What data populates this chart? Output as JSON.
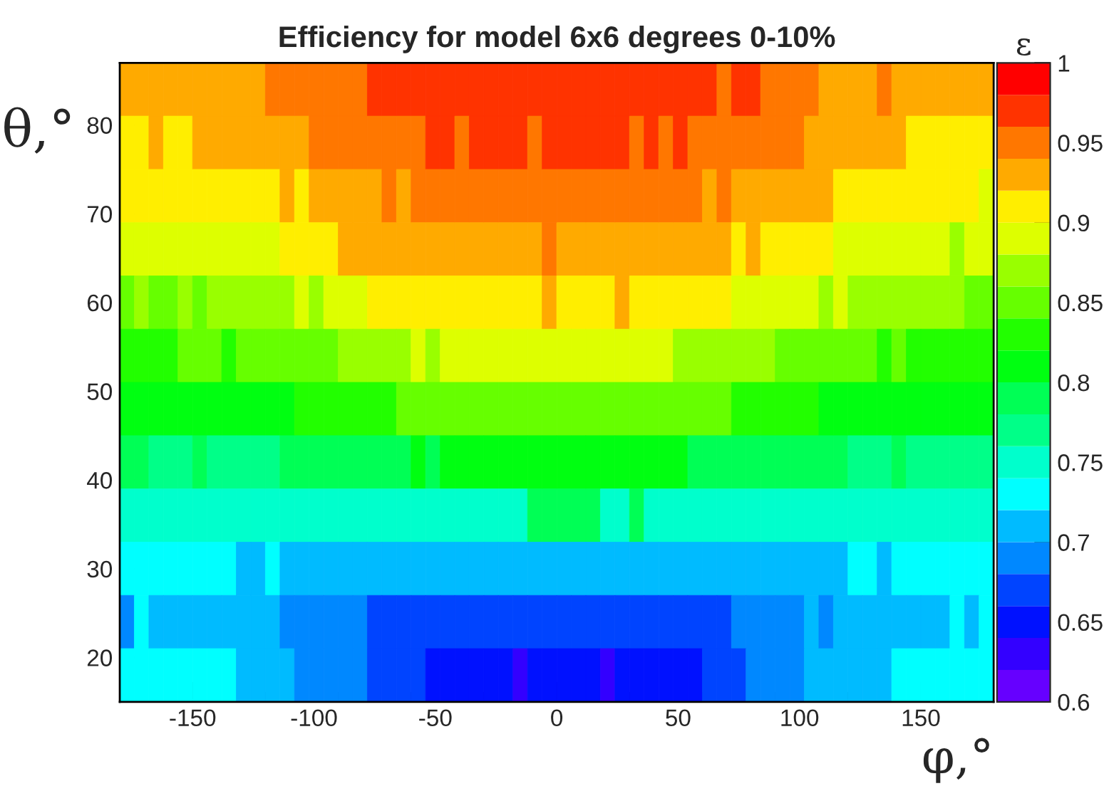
{
  "chart_data": {
    "type": "heatmap",
    "title": "Efficiency for model 6x6 degrees 0-10%",
    "xlabel": "φ,°",
    "ylabel": "θ,°",
    "clabel": "ε",
    "xlim": [
      -180,
      180
    ],
    "xticks": [
      -150,
      -100,
      -50,
      0,
      50,
      100,
      150
    ],
    "ylim": [
      15,
      87
    ],
    "yticks": [
      20,
      30,
      40,
      50,
      60,
      70,
      80
    ],
    "clim": [
      0.6,
      1
    ],
    "cticks": [
      0.6,
      0.65,
      0.7,
      0.75,
      0.8,
      0.85,
      0.9,
      0.95,
      1
    ],
    "colors": [
      "#6600ff",
      "#3300ff",
      "#0011ff",
      "#0044ff",
      "#0088ff",
      "#00bbff",
      "#00ffff",
      "#00ffcc",
      "#00ff88",
      "#00ff55",
      "#00ff11",
      "#22ff00",
      "#66ff00",
      "#99ff00",
      "#ddff00",
      "#ffee00",
      "#ffaa00",
      "#ff7700",
      "#ff3300",
      "#ff0000"
    ],
    "cells": [
      [
        0.93,
        0.93,
        0.93,
        0.93,
        0.93,
        0.93,
        0.93,
        0.93,
        0.93,
        0.93,
        0.95,
        0.95,
        0.95,
        0.95,
        0.95,
        0.95,
        0.95,
        0.97,
        0.97,
        0.97,
        0.97,
        0.97,
        0.97,
        0.97,
        0.97,
        0.97,
        0.97,
        0.97,
        0.97,
        0.97,
        0.97,
        0.97,
        0.97,
        0.97,
        0.97,
        0.97,
        0.97,
        0.97,
        0.97,
        0.97,
        0.97,
        0.95,
        0.97,
        0.97,
        0.95,
        0.95,
        0.95,
        0.95,
        0.93,
        0.93,
        0.93,
        0.93,
        0.95,
        0.93,
        0.93,
        0.93,
        0.93,
        0.93,
        0.93,
        0.93
      ],
      [
        0.91,
        0.91,
        0.93,
        0.91,
        0.91,
        0.93,
        0.93,
        0.93,
        0.93,
        0.93,
        0.93,
        0.93,
        0.93,
        0.95,
        0.95,
        0.95,
        0.95,
        0.95,
        0.95,
        0.95,
        0.95,
        0.97,
        0.97,
        0.95,
        0.97,
        0.97,
        0.97,
        0.97,
        0.95,
        0.97,
        0.97,
        0.97,
        0.97,
        0.97,
        0.97,
        0.95,
        0.97,
        0.95,
        0.97,
        0.95,
        0.95,
        0.95,
        0.95,
        0.95,
        0.95,
        0.95,
        0.95,
        0.93,
        0.93,
        0.93,
        0.93,
        0.93,
        0.93,
        0.93,
        0.91,
        0.91,
        0.91,
        0.91,
        0.91,
        0.91
      ],
      [
        0.91,
        0.91,
        0.91,
        0.91,
        0.91,
        0.91,
        0.91,
        0.91,
        0.91,
        0.91,
        0.91,
        0.93,
        0.91,
        0.93,
        0.93,
        0.93,
        0.93,
        0.93,
        0.95,
        0.93,
        0.95,
        0.95,
        0.95,
        0.95,
        0.95,
        0.95,
        0.95,
        0.95,
        0.95,
        0.95,
        0.95,
        0.95,
        0.95,
        0.95,
        0.95,
        0.95,
        0.95,
        0.95,
        0.95,
        0.95,
        0.93,
        0.95,
        0.93,
        0.93,
        0.93,
        0.93,
        0.93,
        0.93,
        0.93,
        0.91,
        0.91,
        0.91,
        0.91,
        0.91,
        0.91,
        0.91,
        0.91,
        0.91,
        0.91,
        0.89
      ],
      [
        0.89,
        0.89,
        0.89,
        0.89,
        0.89,
        0.89,
        0.89,
        0.89,
        0.89,
        0.89,
        0.89,
        0.91,
        0.91,
        0.91,
        0.91,
        0.93,
        0.93,
        0.93,
        0.93,
        0.93,
        0.93,
        0.93,
        0.93,
        0.93,
        0.93,
        0.93,
        0.93,
        0.93,
        0.93,
        0.95,
        0.93,
        0.93,
        0.93,
        0.93,
        0.93,
        0.93,
        0.93,
        0.93,
        0.93,
        0.93,
        0.93,
        0.93,
        0.91,
        0.93,
        0.91,
        0.91,
        0.91,
        0.91,
        0.91,
        0.89,
        0.89,
        0.89,
        0.89,
        0.89,
        0.89,
        0.89,
        0.89,
        0.87,
        0.89,
        0.89
      ],
      [
        0.85,
        0.87,
        0.85,
        0.85,
        0.87,
        0.85,
        0.87,
        0.87,
        0.87,
        0.87,
        0.87,
        0.87,
        0.89,
        0.87,
        0.89,
        0.89,
        0.89,
        0.91,
        0.91,
        0.91,
        0.91,
        0.91,
        0.91,
        0.91,
        0.91,
        0.91,
        0.91,
        0.91,
        0.91,
        0.93,
        0.91,
        0.91,
        0.91,
        0.91,
        0.93,
        0.91,
        0.91,
        0.91,
        0.91,
        0.91,
        0.91,
        0.91,
        0.89,
        0.89,
        0.89,
        0.89,
        0.89,
        0.89,
        0.87,
        0.89,
        0.87,
        0.87,
        0.87,
        0.87,
        0.87,
        0.87,
        0.87,
        0.87,
        0.85,
        0.85
      ],
      [
        0.83,
        0.83,
        0.83,
        0.83,
        0.85,
        0.85,
        0.85,
        0.83,
        0.85,
        0.85,
        0.85,
        0.85,
        0.85,
        0.85,
        0.85,
        0.87,
        0.87,
        0.87,
        0.87,
        0.87,
        0.89,
        0.87,
        0.89,
        0.89,
        0.89,
        0.89,
        0.89,
        0.89,
        0.89,
        0.89,
        0.89,
        0.89,
        0.89,
        0.89,
        0.89,
        0.89,
        0.89,
        0.89,
        0.87,
        0.87,
        0.87,
        0.87,
        0.87,
        0.87,
        0.87,
        0.85,
        0.85,
        0.85,
        0.85,
        0.85,
        0.85,
        0.85,
        0.83,
        0.85,
        0.83,
        0.83,
        0.83,
        0.83,
        0.83,
        0.83
      ],
      [
        0.81,
        0.81,
        0.81,
        0.81,
        0.81,
        0.81,
        0.81,
        0.81,
        0.81,
        0.81,
        0.81,
        0.81,
        0.83,
        0.83,
        0.83,
        0.83,
        0.83,
        0.83,
        0.83,
        0.85,
        0.85,
        0.85,
        0.85,
        0.85,
        0.85,
        0.85,
        0.85,
        0.85,
        0.85,
        0.85,
        0.85,
        0.85,
        0.85,
        0.85,
        0.85,
        0.85,
        0.85,
        0.85,
        0.85,
        0.85,
        0.85,
        0.85,
        0.83,
        0.83,
        0.83,
        0.83,
        0.83,
        0.83,
        0.81,
        0.81,
        0.81,
        0.81,
        0.81,
        0.81,
        0.81,
        0.81,
        0.81,
        0.81,
        0.81,
        0.81
      ],
      [
        0.79,
        0.79,
        0.77,
        0.77,
        0.77,
        0.79,
        0.77,
        0.77,
        0.77,
        0.77,
        0.77,
        0.79,
        0.79,
        0.79,
        0.79,
        0.79,
        0.79,
        0.79,
        0.79,
        0.79,
        0.81,
        0.79,
        0.81,
        0.81,
        0.81,
        0.81,
        0.81,
        0.81,
        0.81,
        0.81,
        0.81,
        0.81,
        0.81,
        0.81,
        0.81,
        0.81,
        0.81,
        0.81,
        0.81,
        0.79,
        0.79,
        0.79,
        0.79,
        0.79,
        0.79,
        0.79,
        0.79,
        0.79,
        0.79,
        0.79,
        0.77,
        0.77,
        0.77,
        0.79,
        0.77,
        0.77,
        0.77,
        0.77,
        0.77,
        0.77
      ],
      [
        0.75,
        0.75,
        0.75,
        0.75,
        0.75,
        0.75,
        0.75,
        0.75,
        0.75,
        0.75,
        0.75,
        0.75,
        0.75,
        0.75,
        0.75,
        0.75,
        0.75,
        0.75,
        0.75,
        0.75,
        0.75,
        0.75,
        0.75,
        0.75,
        0.75,
        0.75,
        0.75,
        0.75,
        0.79,
        0.79,
        0.79,
        0.79,
        0.79,
        0.75,
        0.75,
        0.79,
        0.75,
        0.75,
        0.75,
        0.75,
        0.75,
        0.75,
        0.75,
        0.75,
        0.75,
        0.75,
        0.75,
        0.75,
        0.75,
        0.75,
        0.75,
        0.75,
        0.75,
        0.75,
        0.75,
        0.75,
        0.75,
        0.75,
        0.75,
        0.75
      ],
      [
        0.73,
        0.73,
        0.73,
        0.73,
        0.73,
        0.73,
        0.73,
        0.73,
        0.71,
        0.71,
        0.73,
        0.71,
        0.71,
        0.71,
        0.71,
        0.71,
        0.71,
        0.71,
        0.71,
        0.71,
        0.71,
        0.71,
        0.71,
        0.71,
        0.71,
        0.71,
        0.71,
        0.71,
        0.71,
        0.71,
        0.71,
        0.71,
        0.71,
        0.71,
        0.71,
        0.71,
        0.71,
        0.71,
        0.71,
        0.71,
        0.71,
        0.71,
        0.71,
        0.71,
        0.71,
        0.71,
        0.71,
        0.71,
        0.71,
        0.71,
        0.73,
        0.73,
        0.71,
        0.73,
        0.73,
        0.73,
        0.73,
        0.73,
        0.73,
        0.73
      ],
      [
        0.69,
        0.73,
        0.71,
        0.71,
        0.71,
        0.71,
        0.71,
        0.71,
        0.71,
        0.71,
        0.71,
        0.69,
        0.69,
        0.69,
        0.69,
        0.69,
        0.69,
        0.67,
        0.67,
        0.67,
        0.67,
        0.67,
        0.67,
        0.67,
        0.67,
        0.67,
        0.67,
        0.67,
        0.67,
        0.67,
        0.67,
        0.67,
        0.67,
        0.67,
        0.67,
        0.67,
        0.67,
        0.67,
        0.67,
        0.67,
        0.67,
        0.67,
        0.69,
        0.69,
        0.69,
        0.69,
        0.69,
        0.71,
        0.69,
        0.71,
        0.71,
        0.71,
        0.71,
        0.71,
        0.71,
        0.71,
        0.71,
        0.73,
        0.71,
        0.73
      ],
      [
        0.73,
        0.73,
        0.73,
        0.73,
        0.73,
        0.73,
        0.73,
        0.73,
        0.71,
        0.71,
        0.71,
        0.71,
        0.69,
        0.69,
        0.69,
        0.69,
        0.69,
        0.67,
        0.67,
        0.67,
        0.67,
        0.65,
        0.65,
        0.65,
        0.65,
        0.65,
        0.65,
        0.63,
        0.65,
        0.65,
        0.65,
        0.65,
        0.65,
        0.63,
        0.65,
        0.65,
        0.65,
        0.65,
        0.65,
        0.65,
        0.67,
        0.67,
        0.67,
        0.69,
        0.69,
        0.69,
        0.69,
        0.71,
        0.71,
        0.71,
        0.71,
        0.71,
        0.71,
        0.73,
        0.73,
        0.73,
        0.73,
        0.73,
        0.73,
        0.73
      ]
    ]
  }
}
